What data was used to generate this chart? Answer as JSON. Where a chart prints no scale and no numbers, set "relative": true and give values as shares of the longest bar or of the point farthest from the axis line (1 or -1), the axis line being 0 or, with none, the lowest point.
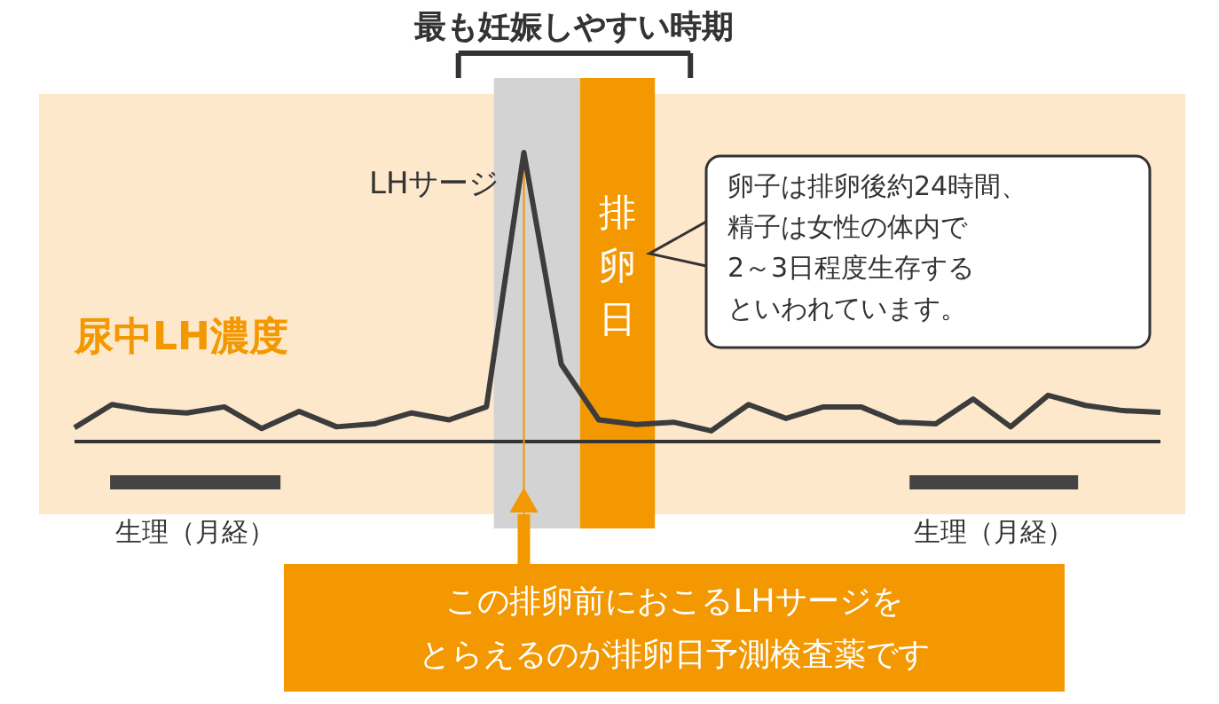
{
  "chart_data": {
    "type": "line",
    "relative": true,
    "title": "最も妊娠しやすい時期",
    "ylabel": "尿中LH濃度",
    "categories": [
      null,
      null,
      null,
      null,
      null,
      null,
      null,
      null,
      null,
      null,
      null,
      null,
      null,
      null,
      null,
      null,
      null,
      null,
      null,
      null,
      null,
      null,
      null,
      null,
      null,
      null,
      null,
      null,
      null,
      null
    ],
    "series": [
      {
        "color": "#3c3c3c",
        "values": [
          0.048,
          0.128,
          0.107,
          0.099,
          0.12,
          0.045,
          0.104,
          0.051,
          0.061,
          0.099,
          0.075,
          0.12,
          1,
          0.267,
          0.075,
          0.059,
          0.067,
          0.037,
          0.128,
          0.08,
          0.12,
          0.12,
          0.067,
          0.061,
          0.147,
          0.051,
          0.16,
          0.125,
          0.107,
          0.101
        ]
      }
    ],
    "annotations": [
      "LHサージ",
      "排卵日",
      "卵子は排卵後約24時間、",
      "精子は女性の体内で",
      "2～3日程度生存する",
      "といわれています。",
      "生理（月経）",
      "生理（月経）",
      "この排卵前におこるLHサージを",
      "とらえるのが排卵日予測検査薬です"
    ]
  }
}
